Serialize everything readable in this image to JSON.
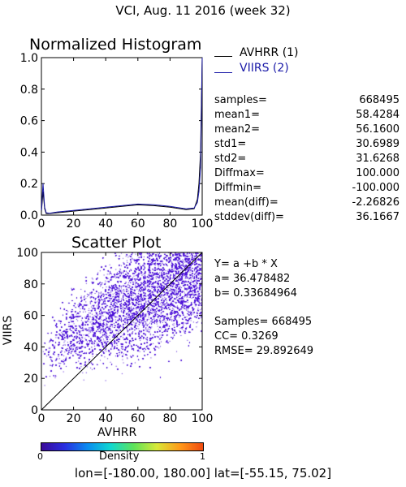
{
  "header": {
    "title": "VCI,  Aug. 11 2016 (week 32)"
  },
  "histogram": {
    "title": "Normalized Histogram",
    "legend": [
      {
        "name": "AVHRR (1)",
        "color": "#000000"
      },
      {
        "name": "VIIRS (2)",
        "color": "#1a1aa8"
      }
    ]
  },
  "stats": {
    "rows": [
      {
        "label": "samples=",
        "value": "668495"
      },
      {
        "label": "mean1=",
        "value": "58.4284"
      },
      {
        "label": "mean2=",
        "value": "56.1600"
      },
      {
        "label": "std1=",
        "value": "30.6989"
      },
      {
        "label": "std2=",
        "value": "31.6268"
      },
      {
        "label": "Diffmax=",
        "value": "100.000"
      },
      {
        "label": "Diffmin=",
        "value": "-100.000"
      },
      {
        "label": "mean(diff)=",
        "value": "-2.26826"
      },
      {
        "label": "stddev(diff)=",
        "value": "36.1667"
      }
    ]
  },
  "scatter": {
    "title": "Scatter Plot",
    "xlabel": "AVHRR",
    "ylabel": "VIIRS"
  },
  "regression": {
    "equation": "Y= a +b * X",
    "a": "a= 36.478482",
    "b": "b= 0.33684964",
    "samples": "Samples= 668495",
    "cc": "CC=  0.3269",
    "rmse": "RMSE= 29.892649"
  },
  "colorbar": {
    "label": "Density",
    "min": "0",
    "max": "1"
  },
  "footer": {
    "extent": "lon=[-180.00, 180.00] lat=[-55.15, 75.02]"
  },
  "chart_data": [
    {
      "type": "line",
      "title": "Normalized Histogram",
      "xlim": [
        0,
        100
      ],
      "ylim": [
        0,
        1
      ],
      "xticks": [
        "0",
        "20",
        "40",
        "60",
        "80",
        "100"
      ],
      "yticks": [
        "0.0",
        "0.2",
        "0.4",
        "0.6",
        "0.8",
        "1.0"
      ],
      "series": [
        {
          "name": "AVHRR (1)",
          "color": "#000000",
          "x": [
            0,
            1,
            2,
            3,
            5,
            10,
            20,
            30,
            40,
            50,
            60,
            70,
            80,
            90,
            95,
            97,
            98,
            99,
            100
          ],
          "y": [
            0.02,
            0.15,
            0.04,
            0.01,
            0.01,
            0.015,
            0.025,
            0.035,
            0.045,
            0.055,
            0.065,
            0.06,
            0.05,
            0.035,
            0.04,
            0.1,
            0.2,
            0.4,
            1.0
          ]
        },
        {
          "name": "VIIRS (2)",
          "color": "#1a1aa8",
          "x": [
            0,
            1,
            2,
            3,
            5,
            10,
            20,
            30,
            40,
            50,
            60,
            70,
            80,
            90,
            95,
            97,
            98,
            99,
            100
          ],
          "y": [
            0.03,
            0.2,
            0.05,
            0.015,
            0.012,
            0.02,
            0.03,
            0.04,
            0.05,
            0.06,
            0.07,
            0.066,
            0.055,
            0.04,
            0.045,
            0.08,
            0.15,
            0.3,
            1.0
          ]
        }
      ]
    },
    {
      "type": "scatter",
      "title": "Scatter Plot",
      "xlabel": "AVHRR",
      "ylabel": "VIIRS",
      "xlim": [
        0,
        100
      ],
      "ylim": [
        0,
        100
      ],
      "xticks": [
        "0",
        "20",
        "40",
        "60",
        "80",
        "100"
      ],
      "yticks": [
        "0",
        "20",
        "40",
        "60",
        "80",
        "100"
      ],
      "point_color": "#4a0fd6",
      "line_color": "#000000",
      "identity_line": [
        [
          0,
          0
        ],
        [
          100,
          100
        ]
      ]
    }
  ]
}
